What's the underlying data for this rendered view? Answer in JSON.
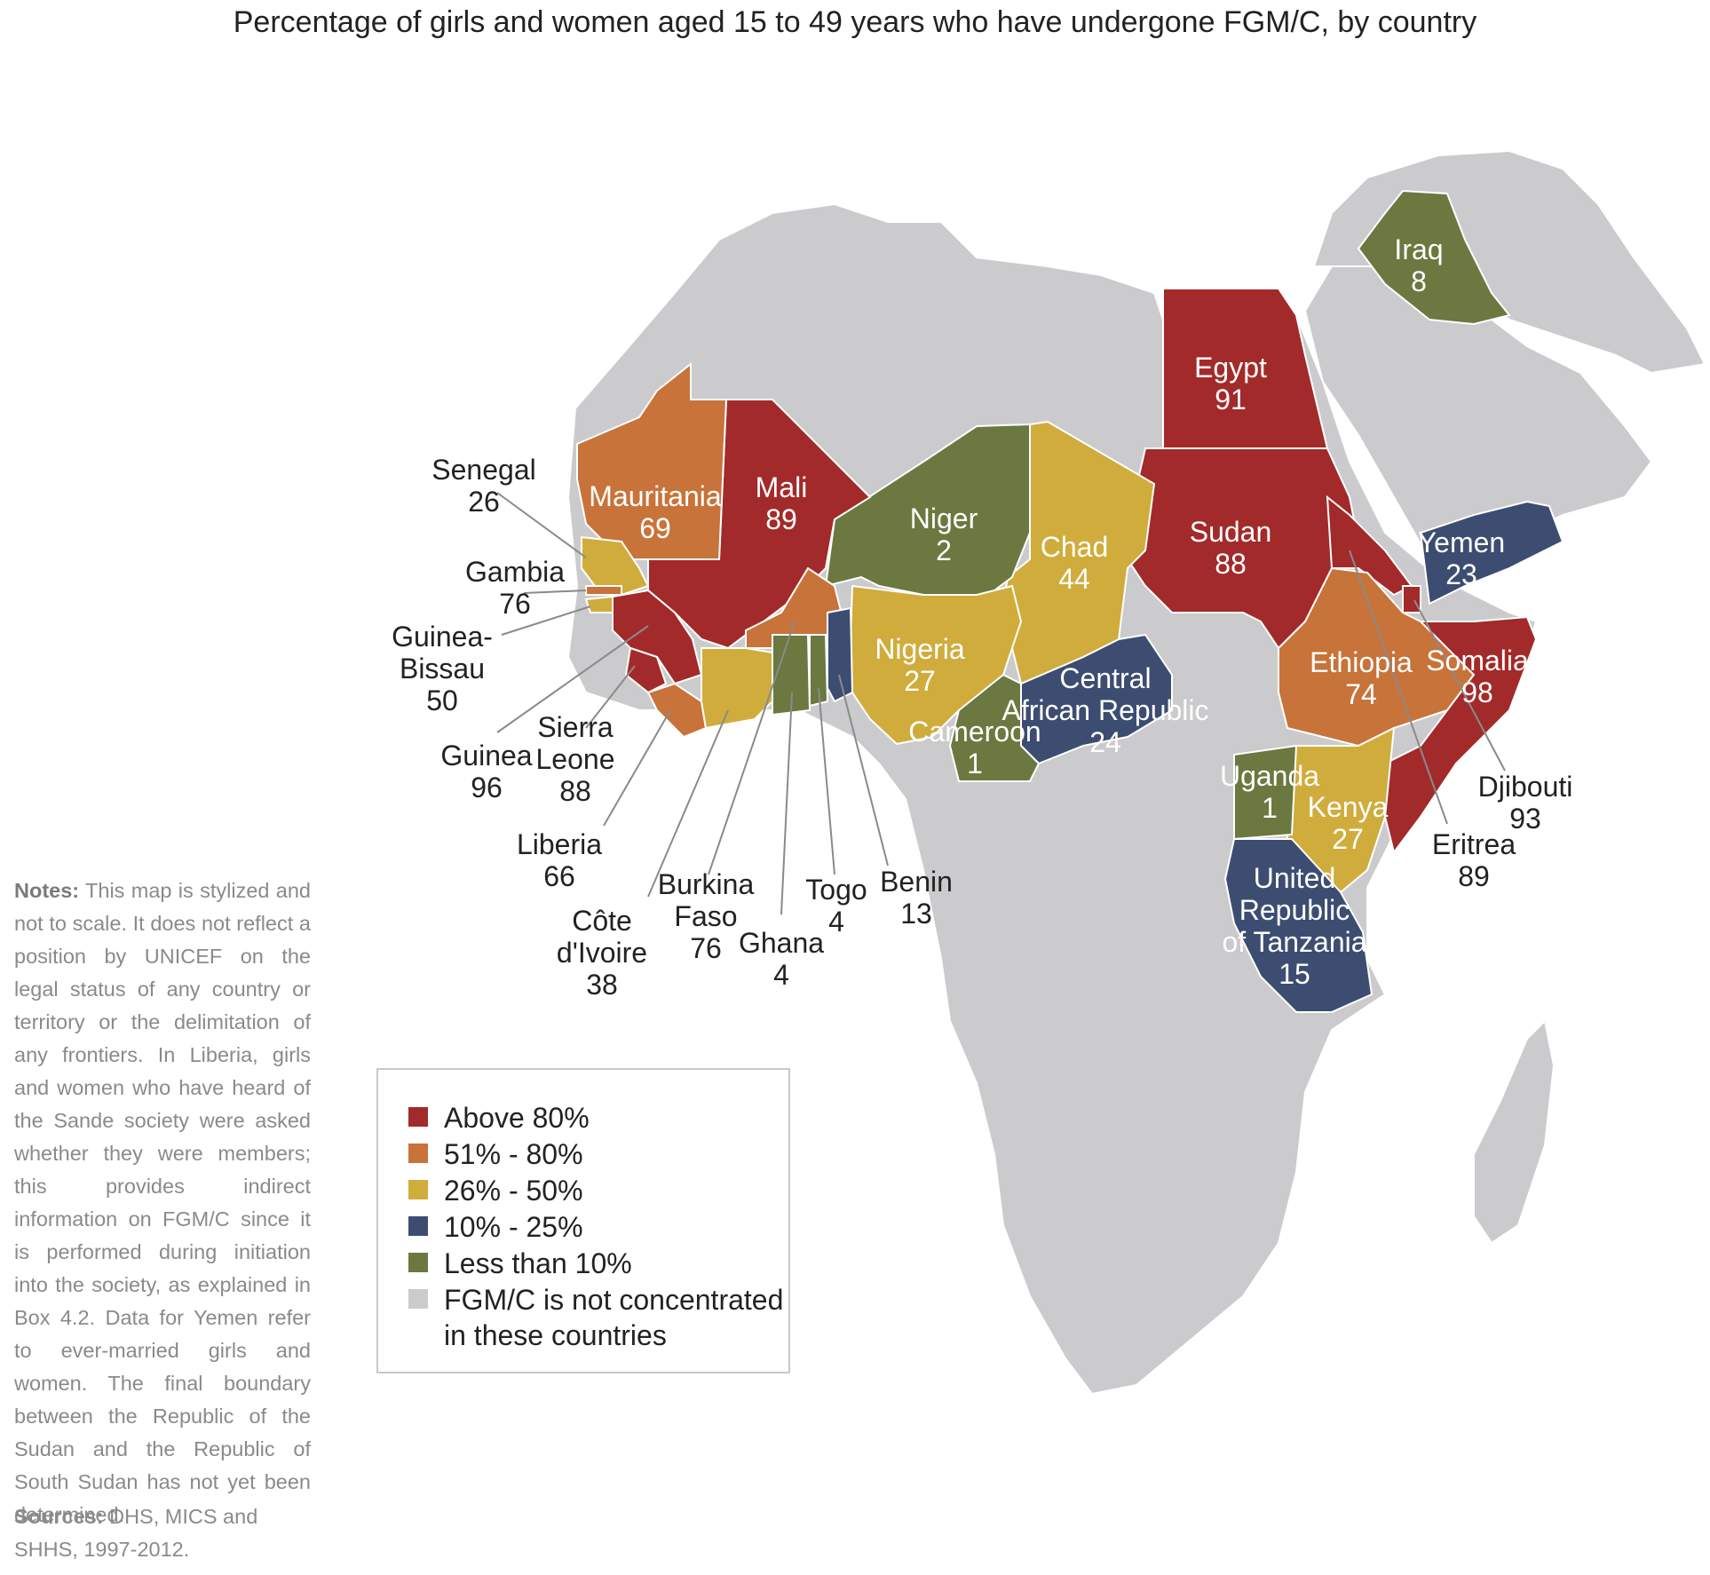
{
  "title": "Percentage of girls and women aged 15 to 49 years who have undergone FGM/C, by country",
  "colors": {
    "above80": "#a32a2a",
    "r51_80": "#c8733a",
    "r26_50": "#d0ac3c",
    "r10_25": "#3d4d71",
    "below10": "#6b7840",
    "not_concentrated": "#cbcbcd"
  },
  "legend": {
    "above80": "Above 80%",
    "r51_80": "51% - 80%",
    "r26_50": "26% - 50%",
    "r10_25": "10% - 25%",
    "below10": "Less than 10%",
    "not_concentrated_1": "FGM/C is not concentrated",
    "not_concentrated_2": "in these countries"
  },
  "countries": {
    "senegal": {
      "name": "Senegal",
      "value": "26"
    },
    "gambia": {
      "name": "Gambia",
      "value": "76"
    },
    "guinea_bissau": {
      "name1": "Guinea-",
      "name2": "Bissau",
      "value": "50"
    },
    "guinea": {
      "name": "Guinea",
      "value": "96"
    },
    "sierra_leone": {
      "name1": "Sierra",
      "name2": "Leone",
      "value": "88"
    },
    "liberia": {
      "name": "Liberia",
      "value": "66"
    },
    "cote_divoire": {
      "name1": "Côte",
      "name2": "d'Ivoire",
      "value": "38"
    },
    "burkina_faso": {
      "name1": "Burkina",
      "name2": "Faso",
      "value": "76"
    },
    "ghana": {
      "name": "Ghana",
      "value": "4"
    },
    "togo": {
      "name": "Togo",
      "value": "4"
    },
    "benin": {
      "name": "Benin",
      "value": "13"
    },
    "mauritania": {
      "name": "Mauritania",
      "value": "69"
    },
    "mali": {
      "name": "Mali",
      "value": "89"
    },
    "niger": {
      "name": "Niger",
      "value": "2"
    },
    "chad": {
      "name": "Chad",
      "value": "44"
    },
    "nigeria": {
      "name": "Nigeria",
      "value": "27"
    },
    "cameroon": {
      "name": "Cameroon",
      "value": "1"
    },
    "car": {
      "name1": "Central",
      "name2": "African Republic",
      "value": "24"
    },
    "egypt": {
      "name": "Egypt",
      "value": "91"
    },
    "sudan": {
      "name": "Sudan",
      "value": "88"
    },
    "ethiopia": {
      "name": "Ethiopia",
      "value": "74"
    },
    "somalia": {
      "name": "Somalia",
      "value": "98"
    },
    "djibouti": {
      "name": "Djibouti",
      "value": "93"
    },
    "eritrea": {
      "name": "Eritrea",
      "value": "89"
    },
    "uganda": {
      "name": "Uganda",
      "value": "1"
    },
    "kenya": {
      "name": "Kenya",
      "value": "27"
    },
    "tanzania": {
      "name1": "United",
      "name2": "Republic",
      "name3": "of Tanzania",
      "value": "15"
    },
    "yemen": {
      "name": "Yemen",
      "value": "23"
    },
    "iraq": {
      "name": "Iraq",
      "value": "8"
    }
  },
  "notes": {
    "label": "Notes:",
    "text": " This map is stylized and not to scale. It does not reflect a position by UNICEF on the legal status of any country or territory or the delimitation of any frontiers. In Liberia, girls and women who have heard of the Sande society were asked whether they were members; this provides indirect information on FGM/C since it is performed during initiation into the society, as explained in Box 4.2. Data for Yemen refer to ever-married girls and women. The final boundary between the Republic of the Sudan and the Republic of South Sudan has not yet been determined."
  },
  "sources": {
    "label": "Sources:",
    "text": " DHS, MICS and SHHS, 1997-2012."
  }
}
